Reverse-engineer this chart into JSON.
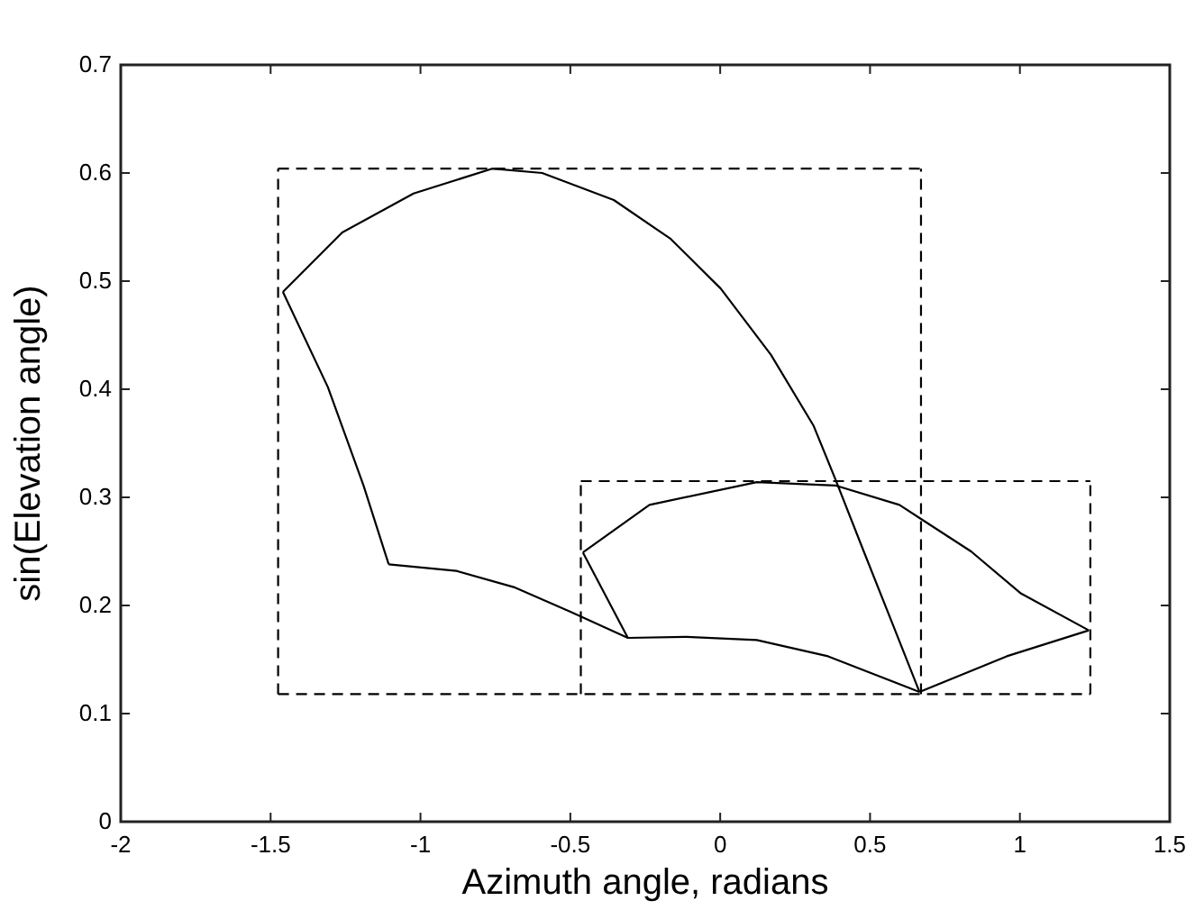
{
  "chart_data": {
    "type": "line",
    "xlabel": "Azimuth angle, radians",
    "ylabel": "sin(Elevation angle)",
    "xlim": [
      -2,
      1.5
    ],
    "ylim": [
      0,
      0.7
    ],
    "xticks": [
      -2,
      -1.5,
      -1,
      -0.5,
      0,
      0.5,
      1,
      1.5
    ],
    "yticks": [
      0,
      0.1,
      0.2,
      0.3,
      0.4,
      0.5,
      0.6,
      0.7
    ],
    "grid": false,
    "legend": false,
    "marker": "none",
    "series": [
      {
        "color": "#000000",
        "line_style": "solid",
        "x": [
          -1.459,
          -1.261,
          -1.023,
          -0.761,
          -0.594,
          -0.355,
          -0.165,
          0.002,
          0.169,
          0.312,
          0.384,
          0.479,
          0.575,
          0.665
        ],
        "values": [
          0.49,
          0.545,
          0.581,
          0.604,
          0.6,
          0.575,
          0.539,
          0.493,
          0.432,
          0.366,
          0.317,
          0.25,
          0.183,
          0.12
        ]
      },
      {
        "color": "#000000",
        "line_style": "solid",
        "x": [
          -1.459,
          -1.309,
          -1.19,
          -1.106
        ],
        "values": [
          0.49,
          0.402,
          0.311,
          0.238
        ]
      },
      {
        "color": "#000000",
        "line_style": "solid",
        "x": [
          -1.106,
          -0.88,
          -0.689,
          -0.498,
          -0.308,
          -0.117,
          0.122,
          0.36,
          0.665
        ],
        "values": [
          0.238,
          0.232,
          0.217,
          0.194,
          0.17,
          0.171,
          0.168,
          0.153,
          0.12
        ]
      },
      {
        "color": "#000000",
        "line_style": "solid",
        "x": [
          -0.458,
          -0.236,
          0.122,
          0.384,
          0.598,
          0.837,
          1.004,
          1.23
        ],
        "values": [
          0.249,
          0.293,
          0.314,
          0.311,
          0.293,
          0.25,
          0.211,
          0.177
        ]
      },
      {
        "color": "#000000",
        "line_style": "solid",
        "x": [
          -0.458,
          -0.308
        ],
        "values": [
          0.249,
          0.17
        ]
      },
      {
        "color": "#000000",
        "line_style": "solid",
        "x": [
          0.665,
          0.956,
          1.23
        ],
        "values": [
          0.12,
          0.153,
          0.177
        ]
      },
      {
        "color": "#000000",
        "line_style": "dashed",
        "x": [
          -1.475,
          0.67
        ],
        "values": [
          0.604,
          0.604
        ]
      },
      {
        "color": "#000000",
        "line_style": "dashed",
        "x": [
          -0.465,
          1.235
        ],
        "values": [
          0.315,
          0.315
        ]
      },
      {
        "color": "#000000",
        "line_style": "dashed",
        "x": [
          -1.475,
          1.235
        ],
        "values": [
          0.118,
          0.118
        ]
      },
      {
        "color": "#000000",
        "line_style": "dashed",
        "x": [
          -1.475,
          -1.475
        ],
        "values": [
          0.118,
          0.604
        ]
      },
      {
        "color": "#000000",
        "line_style": "dashed",
        "x": [
          0.67,
          0.67
        ],
        "values": [
          0.118,
          0.604
        ]
      },
      {
        "color": "#000000",
        "line_style": "dashed",
        "x": [
          -0.465,
          -0.465
        ],
        "values": [
          0.118,
          0.315
        ]
      },
      {
        "color": "#000000",
        "line_style": "dashed",
        "x": [
          1.235,
          1.235
        ],
        "values": [
          0.118,
          0.315
        ]
      }
    ]
  }
}
